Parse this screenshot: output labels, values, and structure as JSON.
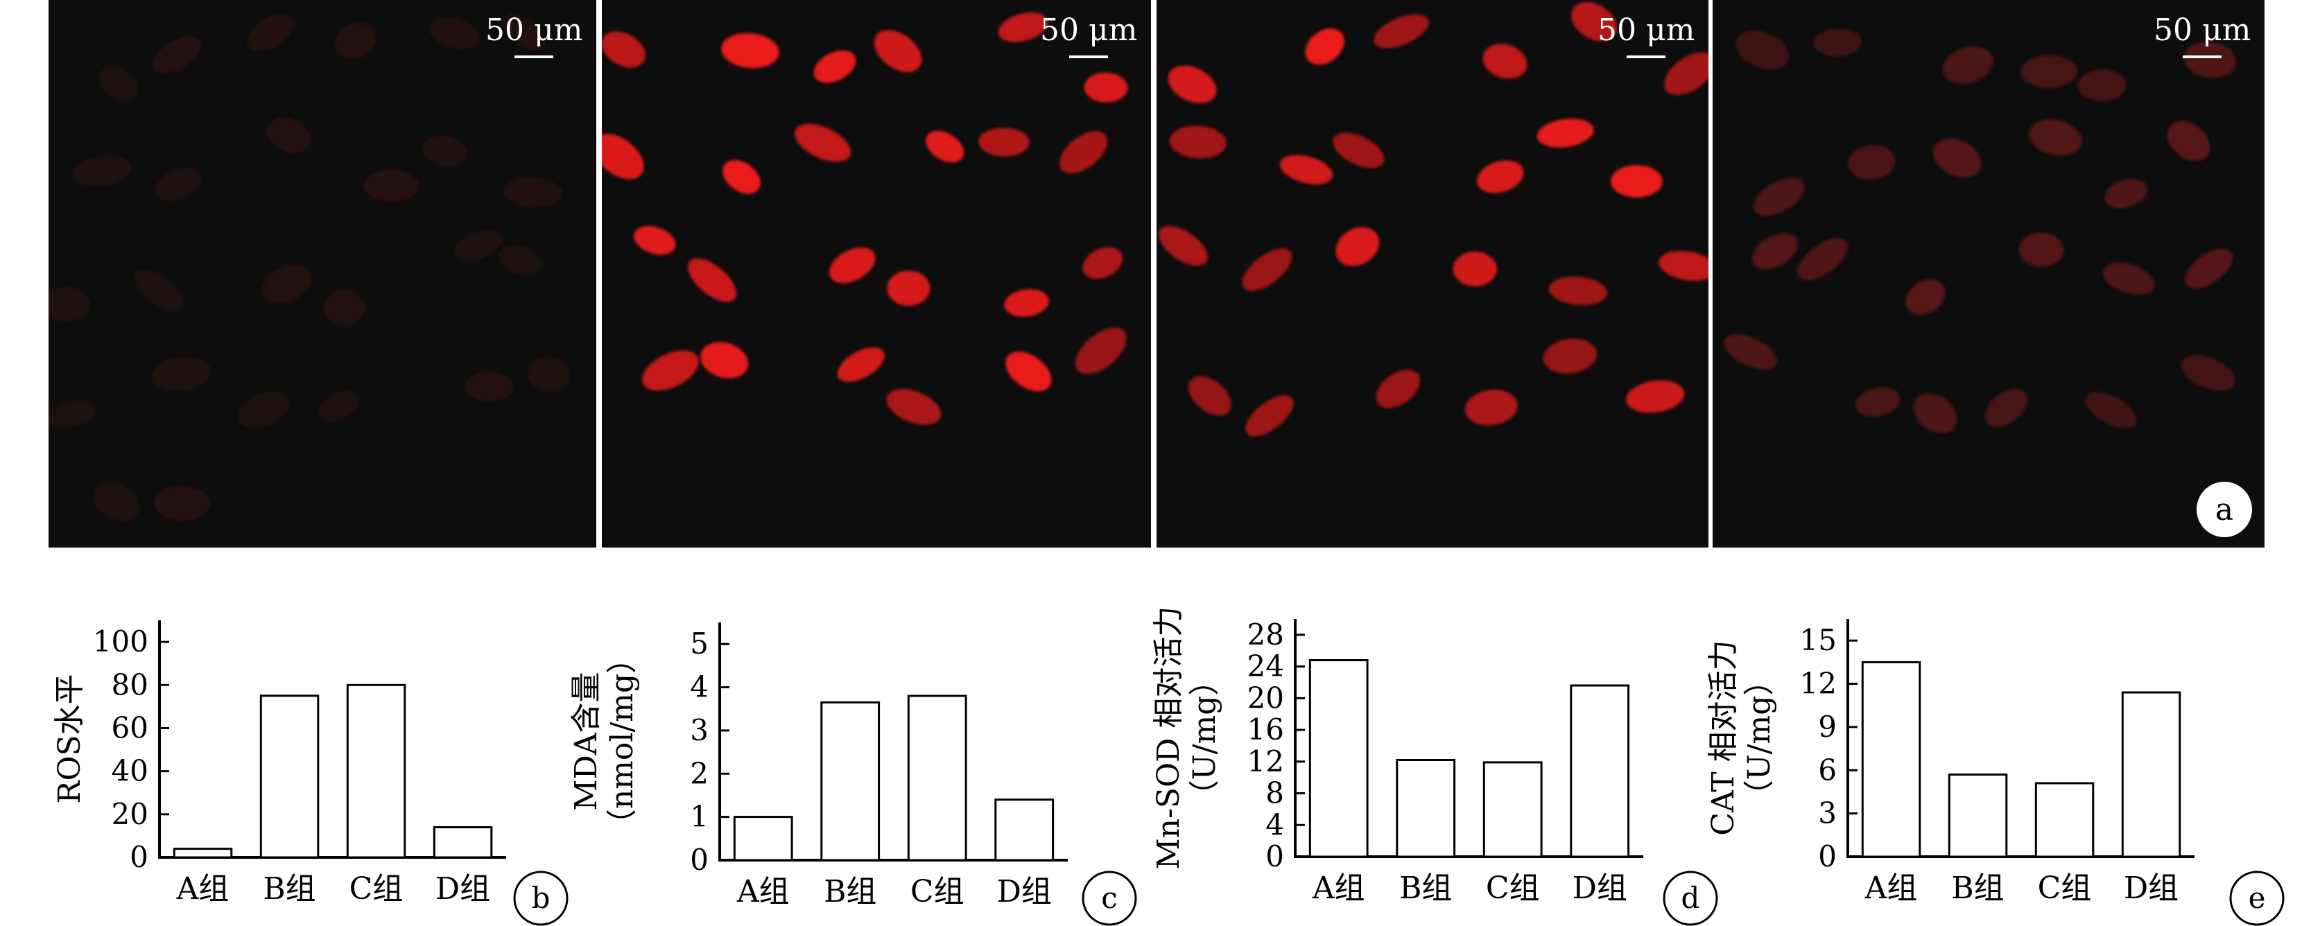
{
  "figure": {
    "panel_a": {
      "label": "a",
      "scale_bar": "50 μm",
      "images": [
        {
          "name": "group-a-micrograph",
          "intensity": "very-dim"
        },
        {
          "name": "group-b-micrograph",
          "intensity": "bright"
        },
        {
          "name": "group-c-micrograph",
          "intensity": "bright"
        },
        {
          "name": "group-d-micrograph",
          "intensity": "dim"
        }
      ],
      "colors": {
        "background": "#0d0d0d",
        "nucleus_bright": "#ee1c1c"
      }
    }
  },
  "chart_data": [
    {
      "type": "bar",
      "label": "b",
      "categories": [
        "A组",
        "B组",
        "C组",
        "D组"
      ],
      "values": [
        4,
        75,
        80,
        14
      ],
      "ylabel": [
        "ROS水平"
      ],
      "yticks": [
        0,
        20,
        40,
        60,
        80,
        100
      ],
      "ylim": [
        0,
        110
      ],
      "title": "",
      "xlabel": ""
    },
    {
      "type": "bar",
      "label": "c",
      "categories": [
        "A组",
        "B组",
        "C组",
        "D组"
      ],
      "values": [
        1.0,
        3.65,
        3.8,
        1.4
      ],
      "ylabel": [
        "MDA含量",
        "（nmol/mg）"
      ],
      "yticks": [
        0,
        1,
        2,
        3,
        4,
        5
      ],
      "ylim": [
        0,
        5.5
      ],
      "title": "",
      "xlabel": ""
    },
    {
      "type": "bar",
      "label": "d",
      "categories": [
        "A组",
        "B组",
        "C组",
        "D组"
      ],
      "values": [
        24.8,
        12.2,
        11.9,
        21.6
      ],
      "ylabel": [
        "Mn-SOD 相对活力",
        "（U/mg）"
      ],
      "yticks": [
        0,
        4,
        8,
        12,
        16,
        20,
        24,
        28
      ],
      "ylim": [
        0,
        30
      ],
      "title": "",
      "xlabel": ""
    },
    {
      "type": "bar",
      "label": "e",
      "categories": [
        "A组",
        "B组",
        "C组",
        "D组"
      ],
      "values": [
        13.5,
        5.7,
        5.1,
        11.4
      ],
      "ylabel": [
        "CAT 相对活力",
        "（U/mg）"
      ],
      "yticks": [
        0,
        3,
        6,
        9,
        12,
        15
      ],
      "ylim": [
        0,
        16.5
      ],
      "title": "",
      "xlabel": ""
    }
  ]
}
